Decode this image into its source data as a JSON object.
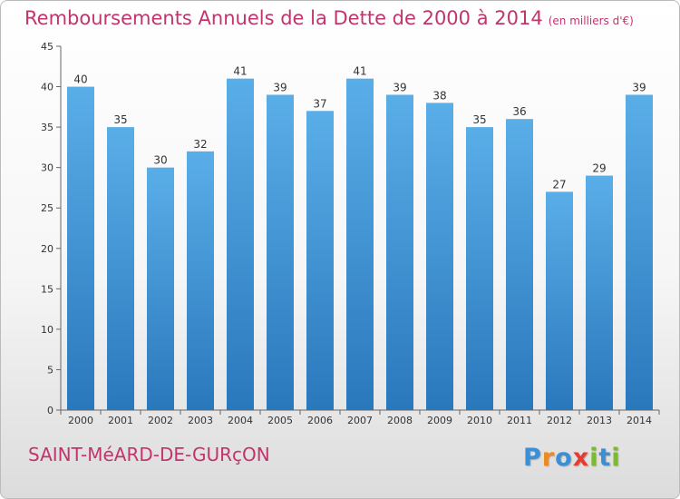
{
  "title": "Remboursements Annuels de la Dette de 2000 à 2014",
  "unit": "(en milliers d'€)",
  "commune": "SAINT-MéARD-DE-GURçON",
  "brand": {
    "letters": [
      "P",
      "r",
      "o",
      "x",
      "i",
      "t",
      "i"
    ],
    "colors": [
      "#3a8fd6",
      "#f08a1c",
      "#3a8fd6",
      "#e63b2e",
      "#7dbb2e",
      "#3a8fd6",
      "#7dbb2e"
    ]
  },
  "colors": {
    "accent": "#c2346d",
    "bar_top": "#5aaee8",
    "bar_bottom": "#2a78bc"
  },
  "chart_data": {
    "type": "bar",
    "categories": [
      "2000",
      "2001",
      "2002",
      "2003",
      "2004",
      "2005",
      "2006",
      "2007",
      "2008",
      "2009",
      "2010",
      "2011",
      "2012",
      "2013",
      "2014"
    ],
    "values": [
      40,
      35,
      30,
      32,
      41,
      39,
      37,
      41,
      39,
      38,
      35,
      36,
      27,
      29,
      39
    ],
    "ylim": [
      0,
      45
    ],
    "yticks": [
      0,
      5,
      10,
      15,
      20,
      25,
      30,
      35,
      40,
      45
    ],
    "grid": false,
    "legend": "none"
  }
}
